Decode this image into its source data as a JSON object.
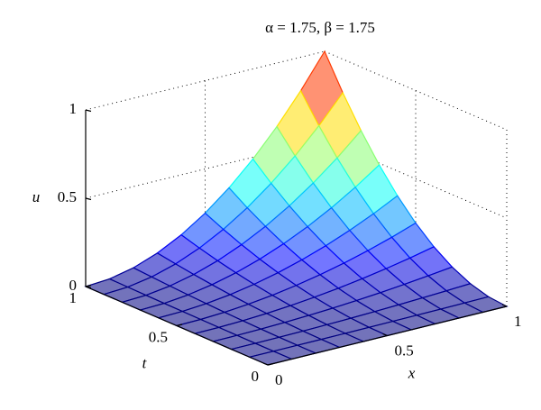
{
  "chart_data": {
    "type": "surface",
    "title": "α = 1.75, β = 1.75",
    "xlabel": "x",
    "ylabel": "t",
    "zlabel": "u",
    "x": [
      0,
      0.1,
      0.2,
      0.3,
      0.4,
      0.5,
      0.6,
      0.7,
      0.8,
      0.9,
      1
    ],
    "y": [
      0,
      0.1,
      0.2,
      0.3,
      0.4,
      0.5,
      0.6,
      0.7,
      0.8,
      0.9,
      1
    ],
    "z": [
      [
        0,
        0,
        0,
        0,
        0,
        0,
        0,
        0,
        0,
        0,
        0
      ],
      [
        0,
        0.0001,
        0.0004,
        0.0009,
        0.0016,
        0.0025,
        0.0036,
        0.0049,
        0.0064,
        0.0081,
        0.01
      ],
      [
        0,
        0.0004,
        0.0016,
        0.0036,
        0.0064,
        0.01,
        0.0144,
        0.0196,
        0.0256,
        0.0324,
        0.04
      ],
      [
        0,
        0.0009,
        0.0036,
        0.0081,
        0.0144,
        0.0225,
        0.0324,
        0.0441,
        0.0576,
        0.0729,
        0.09
      ],
      [
        0,
        0.0016,
        0.0064,
        0.0144,
        0.0256,
        0.04,
        0.0576,
        0.0784,
        0.1024,
        0.1296,
        0.16
      ],
      [
        0,
        0.0025,
        0.01,
        0.0225,
        0.04,
        0.0625,
        0.09,
        0.1225,
        0.16,
        0.2025,
        0.25
      ],
      [
        0,
        0.0036,
        0.0144,
        0.0324,
        0.0576,
        0.09,
        0.1296,
        0.1764,
        0.2304,
        0.2916,
        0.36
      ],
      [
        0,
        0.0049,
        0.0196,
        0.0441,
        0.0784,
        0.1225,
        0.1764,
        0.2401,
        0.3136,
        0.3969,
        0.49
      ],
      [
        0,
        0.0064,
        0.0256,
        0.0576,
        0.1024,
        0.16,
        0.2304,
        0.3136,
        0.4096,
        0.5184,
        0.64
      ],
      [
        0,
        0.0081,
        0.0324,
        0.0729,
        0.1296,
        0.2025,
        0.2916,
        0.3969,
        0.5184,
        0.6561,
        0.81
      ],
      [
        0,
        0.01,
        0.04,
        0.09,
        0.16,
        0.25,
        0.36,
        0.49,
        0.64,
        0.81,
        1
      ]
    ],
    "xlim": [
      0,
      1
    ],
    "ylim": [
      0,
      1
    ],
    "zlim": [
      0,
      1
    ],
    "xticks": [
      0,
      0.5,
      1
    ],
    "yticks": [
      0,
      0.5,
      1
    ],
    "zticks": [
      0,
      0.5,
      1
    ],
    "colormap": "jet",
    "grid": true
  }
}
